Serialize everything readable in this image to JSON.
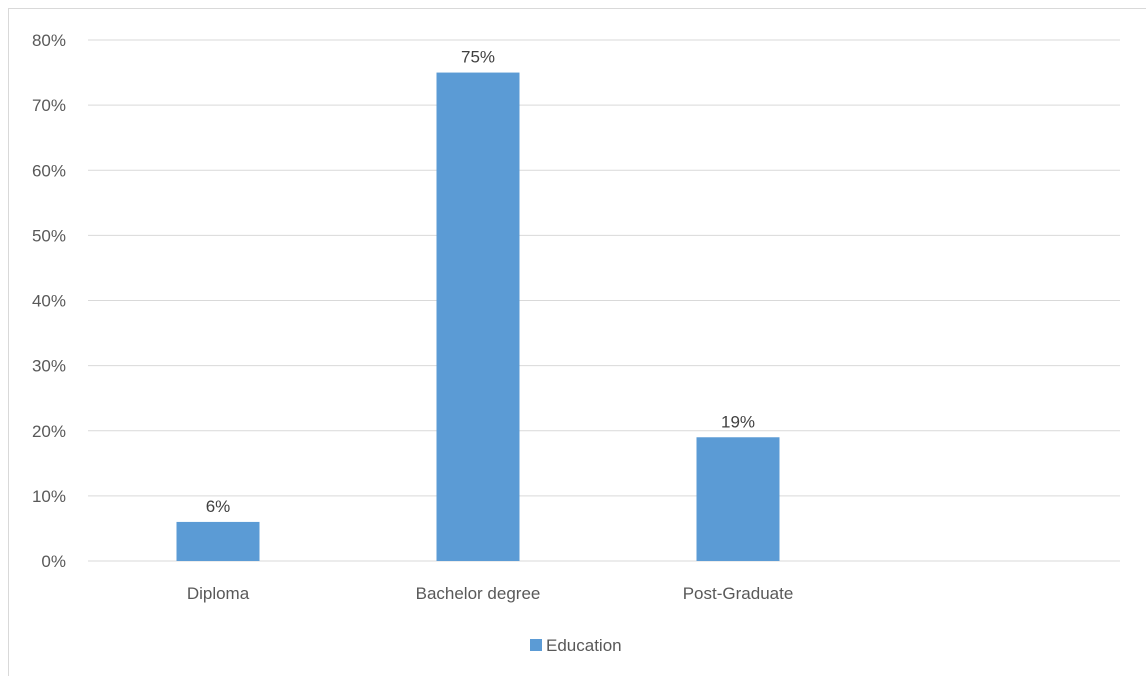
{
  "chart_data": {
    "type": "bar",
    "categories": [
      "Diploma",
      "Bachelor degree",
      "Post-Graduate"
    ],
    "series": [
      {
        "name": "Education",
        "values": [
          6,
          75,
          19
        ],
        "labels": [
          "6%",
          "75%",
          "19%"
        ],
        "color": "#5b9bd5"
      }
    ],
    "y_ticks": [
      "0%",
      "10%",
      "20%",
      "30%",
      "40%",
      "50%",
      "60%",
      "70%",
      "80%"
    ],
    "ylim": [
      0,
      80
    ],
    "grid": true,
    "legend_position": "bottom",
    "title": "",
    "xlabel": "",
    "ylabel": ""
  }
}
